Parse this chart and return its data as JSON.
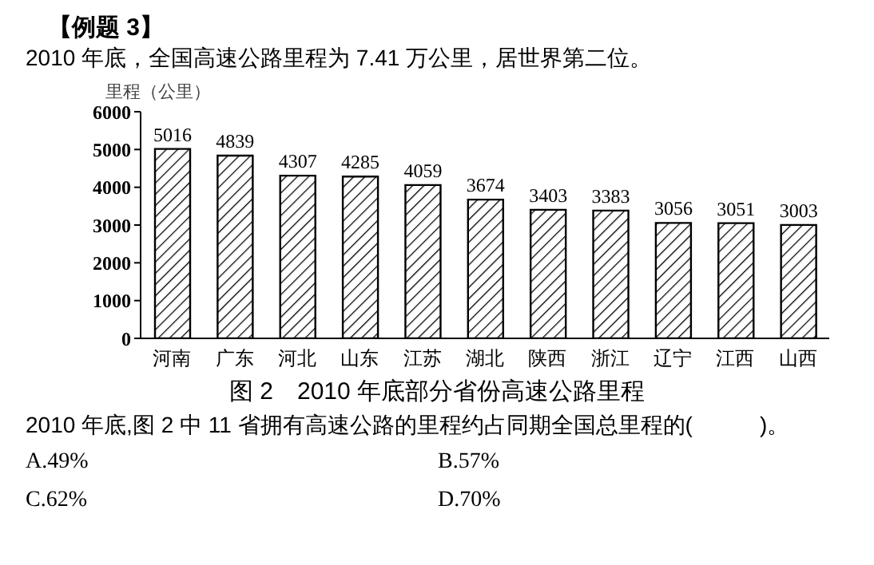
{
  "chart_data": {
    "type": "bar",
    "title": "【例题 3】",
    "subtitle": "2010 年底，全国高速公路里程为 7.41 万公里，居世界第二位。",
    "ylabel": "里程（公里）",
    "categories": [
      "河南",
      "广东",
      "河北",
      "山东",
      "江苏",
      "湖北",
      "陕西",
      "浙江",
      "辽宁",
      "江西",
      "山西"
    ],
    "values": [
      5016,
      4839,
      4307,
      4285,
      4059,
      3674,
      3403,
      3383,
      3056,
      3051,
      3003
    ],
    "color": "#000000",
    "ylim": [
      0,
      6000
    ],
    "yticks": [
      0,
      1000,
      2000,
      3000,
      4000,
      5000,
      6000
    ],
    "grid": false,
    "legend": false,
    "data_labels": true,
    "annotations": [
      "图 2　2010 年底部分省份高速公路里程",
      "2010 年底,图 2 中 11 省拥有高速公路的里程约占同期全国总里程的(　　　)。",
      "A.49%",
      "B.57%",
      "C.62%",
      "D.70%"
    ]
  }
}
